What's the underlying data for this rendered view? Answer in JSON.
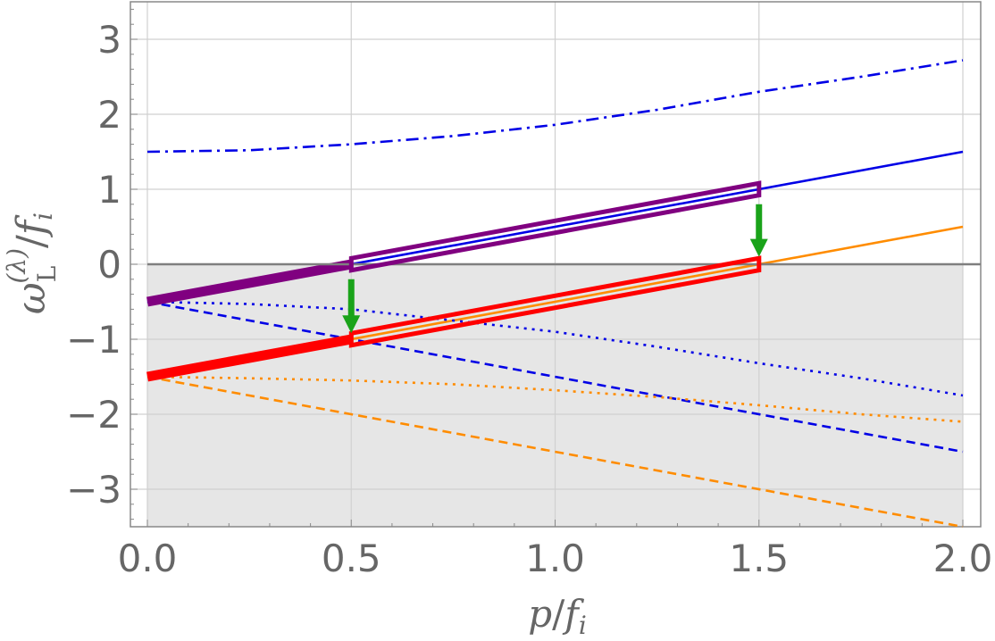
{
  "chart_data": {
    "type": "line",
    "title": "",
    "xlabel": {
      "main": "p",
      "slash": "/",
      "f": "f",
      "sub": "i"
    },
    "ylabel": {
      "omega": "ω",
      "sub": "L",
      "sup": "(λ)",
      "slash": "/",
      "f": "f",
      "fsub": "i"
    },
    "xlim": [
      0,
      2
    ],
    "ylim": [
      -3.5,
      3.5
    ],
    "x_ticks": [
      {
        "value": 0,
        "label": "0.0"
      },
      {
        "value": 0.5,
        "label": "0.5"
      },
      {
        "value": 1,
        "label": "1.0"
      },
      {
        "value": 1.5,
        "label": "1.5"
      },
      {
        "value": 2,
        "label": "2.0"
      }
    ],
    "y_ticks": [
      {
        "value": -3,
        "label": "−3"
      },
      {
        "value": -2,
        "label": "−2"
      },
      {
        "value": -1,
        "label": "−1"
      },
      {
        "value": 0,
        "label": "0"
      },
      {
        "value": 1,
        "label": "1"
      },
      {
        "value": 2,
        "label": "2"
      },
      {
        "value": 3,
        "label": "3"
      }
    ],
    "grid": true,
    "shaded_region": {
      "y_from": -3.5,
      "y_to": 0,
      "color": "#e6e6e6"
    },
    "zero_line_color": "#7f7f7f",
    "series": [
      {
        "style": "dashdot",
        "color": "#0000e6",
        "x": [
          0,
          0.25,
          0.5,
          0.75,
          1.0,
          1.25,
          1.5,
          1.75,
          2.0
        ],
        "y": [
          1.5,
          1.52,
          1.6,
          1.71,
          1.86,
          2.06,
          2.3,
          2.5,
          2.72
        ]
      },
      {
        "style": "solid",
        "color": "#0000e6",
        "x": [
          0,
          2
        ],
        "y": [
          -0.5,
          1.5
        ]
      },
      {
        "style": "solid",
        "color": "#ff8c00",
        "x": [
          0,
          2
        ],
        "y": [
          -1.5,
          0.5
        ]
      },
      {
        "style": "dotted",
        "color": "#0000e6",
        "x": [
          0,
          0.25,
          0.5,
          0.75,
          1.0,
          1.25,
          1.5,
          1.75,
          2.0
        ],
        "y": [
          -0.5,
          -0.53,
          -0.6,
          -0.75,
          -0.9,
          -1.1,
          -1.32,
          -1.52,
          -1.75
        ]
      },
      {
        "style": "dashed",
        "color": "#0000e6",
        "x": [
          0,
          2
        ],
        "y": [
          -0.5,
          -2.5
        ]
      },
      {
        "style": "dotted",
        "color": "#ff8c00",
        "x": [
          0,
          0.25,
          0.5,
          0.75,
          1.0,
          1.25,
          1.5,
          1.75,
          2.0
        ],
        "y": [
          -1.5,
          -1.52,
          -1.55,
          -1.6,
          -1.68,
          -1.77,
          -1.88,
          -2.0,
          -2.1
        ]
      },
      {
        "style": "dashed",
        "color": "#ff8c00",
        "x": [
          0,
          2
        ],
        "y": [
          -1.5,
          -3.5
        ]
      }
    ],
    "thick_segments": [
      {
        "color": "#800080",
        "x": [
          0,
          0.5
        ],
        "y": [
          -0.5,
          0.0
        ]
      },
      {
        "color": "#ff0000",
        "x": [
          0,
          0.5
        ],
        "y": [
          -1.5,
          -1.0
        ]
      }
    ],
    "highlight_bands": [
      {
        "color": "#800080",
        "x": [
          0.5,
          1.5
        ],
        "y": [
          0.0,
          1.0
        ],
        "half_width": 0.08
      },
      {
        "color": "#ff0000",
        "x": [
          0.5,
          1.5
        ],
        "y": [
          -1.0,
          0.0
        ],
        "half_width": 0.08
      }
    ],
    "arrows": [
      {
        "color": "#1aa31a",
        "x": 0.5,
        "y_from": -0.2,
        "y_to": -0.92
      },
      {
        "color": "#1aa31a",
        "x": 1.5,
        "y_from": 0.8,
        "y_to": 0.1
      }
    ]
  }
}
